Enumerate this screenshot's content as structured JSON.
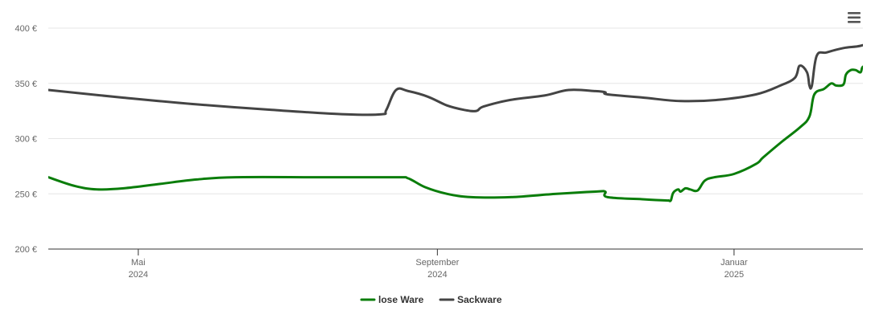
{
  "menu_icon": "hamburger-menu-icon",
  "colors": {
    "lose_ware": "#0a7d0a",
    "sackware": "#444444",
    "grid": "#e6e6e6",
    "axis": "#333333"
  },
  "chart_data": {
    "type": "line",
    "title": "",
    "xlabel": "",
    "ylabel": "",
    "ylim": [
      200,
      400
    ],
    "xlim": [
      "2024-03-25",
      "2025-02-23"
    ],
    "y_ticks": [
      {
        "value": 200,
        "label": "200 €"
      },
      {
        "value": 250,
        "label": "250 €"
      },
      {
        "value": 300,
        "label": "300 €"
      },
      {
        "value": 350,
        "label": "350 €"
      },
      {
        "value": 400,
        "label": "400 €"
      }
    ],
    "x_ticks": [
      {
        "date": "2024-05-01",
        "label": "Mai",
        "sublabel": "2024"
      },
      {
        "date": "2024-09-01",
        "label": "September",
        "sublabel": "2024"
      },
      {
        "date": "2025-01-01",
        "label": "Januar",
        "sublabel": "2025"
      }
    ],
    "grid": true,
    "legend_position": "bottom-center",
    "series": [
      {
        "name": "lose Ware",
        "color": "#0a7d0a",
        "points": [
          [
            "2024-03-25",
            265
          ],
          [
            "2024-04-05",
            257
          ],
          [
            "2024-04-14",
            254
          ],
          [
            "2024-04-25",
            255
          ],
          [
            "2024-05-10",
            259
          ],
          [
            "2024-05-25",
            263
          ],
          [
            "2024-06-10",
            265
          ],
          [
            "2024-07-15",
            265
          ],
          [
            "2024-08-15",
            265
          ],
          [
            "2024-08-20",
            264
          ],
          [
            "2024-08-27",
            256
          ],
          [
            "2024-09-05",
            250
          ],
          [
            "2024-09-15",
            247
          ],
          [
            "2024-10-01",
            247
          ],
          [
            "2024-10-20",
            250
          ],
          [
            "2024-11-05",
            252
          ],
          [
            "2024-11-09",
            252
          ],
          [
            "2024-11-10",
            247
          ],
          [
            "2024-11-25",
            245
          ],
          [
            "2024-12-04",
            244
          ],
          [
            "2024-12-05",
            244
          ],
          [
            "2024-12-06",
            244
          ],
          [
            "2024-12-07",
            251
          ],
          [
            "2024-12-09",
            254
          ],
          [
            "2024-12-10",
            252
          ],
          [
            "2024-12-12",
            255
          ],
          [
            "2024-12-14",
            254
          ],
          [
            "2024-12-17",
            253
          ],
          [
            "2024-12-20",
            262
          ],
          [
            "2024-12-24",
            265
          ],
          [
            "2025-01-01",
            268
          ],
          [
            "2025-01-10",
            277
          ],
          [
            "2025-01-13",
            283
          ],
          [
            "2025-01-20",
            296
          ],
          [
            "2025-01-28",
            310
          ],
          [
            "2025-02-01",
            320
          ],
          [
            "2025-02-03",
            340
          ],
          [
            "2025-02-07",
            345
          ],
          [
            "2025-02-10",
            350
          ],
          [
            "2025-02-12",
            348
          ],
          [
            "2025-02-15",
            349
          ],
          [
            "2025-02-16",
            358
          ],
          [
            "2025-02-18",
            362
          ],
          [
            "2025-02-20",
            362
          ],
          [
            "2025-02-22",
            360
          ],
          [
            "2025-02-23",
            365
          ],
          [
            "2025-02-26",
            365
          ],
          [
            "2025-02-28",
            360
          ]
        ]
      },
      {
        "name": "Sackware",
        "color": "#444444",
        "points": [
          [
            "2024-03-25",
            344
          ],
          [
            "2024-04-25",
            337
          ],
          [
            "2024-05-25",
            331
          ],
          [
            "2024-06-25",
            326
          ],
          [
            "2024-07-25",
            322
          ],
          [
            "2024-08-09",
            322
          ],
          [
            "2024-08-11",
            326
          ],
          [
            "2024-08-15",
            344
          ],
          [
            "2024-08-20",
            343
          ],
          [
            "2024-08-28",
            338
          ],
          [
            "2024-09-05",
            330
          ],
          [
            "2024-09-12",
            326
          ],
          [
            "2024-09-17",
            325
          ],
          [
            "2024-09-20",
            329
          ],
          [
            "2024-10-01",
            335
          ],
          [
            "2024-10-15",
            339
          ],
          [
            "2024-10-25",
            344
          ],
          [
            "2024-11-05",
            343
          ],
          [
            "2024-11-09",
            342
          ],
          [
            "2024-11-10",
            340
          ],
          [
            "2024-11-25",
            337
          ],
          [
            "2024-12-10",
            334
          ],
          [
            "2024-12-25",
            335
          ],
          [
            "2025-01-10",
            340
          ],
          [
            "2025-01-20",
            348
          ],
          [
            "2025-01-26",
            355
          ],
          [
            "2025-01-28",
            366
          ],
          [
            "2025-01-31",
            360
          ],
          [
            "2025-02-01",
            348
          ],
          [
            "2025-02-02",
            348
          ],
          [
            "2025-02-04",
            375
          ],
          [
            "2025-02-08",
            378
          ],
          [
            "2025-02-15",
            382
          ],
          [
            "2025-02-22",
            384
          ],
          [
            "2025-02-28",
            389
          ]
        ]
      }
    ]
  }
}
